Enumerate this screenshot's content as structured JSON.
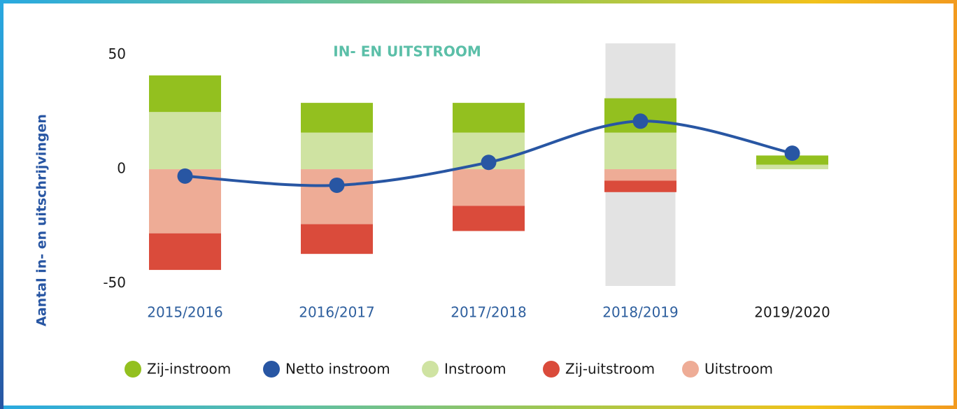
{
  "chart_data": {
    "type": "bar",
    "title": "IN- EN UITSTROOM",
    "y_label": "Aantal in- en uitschrijvingen",
    "categories": [
      "2015/2016",
      "2016/2017",
      "2017/2018",
      "2018/2019",
      "2019/2020"
    ],
    "category_label_colors": [
      "#2e5f9e",
      "#2e5f9e",
      "#2e5f9e",
      "#2e5f9e",
      "#1a1a1a"
    ],
    "highlight_index": 3,
    "highlight_color": "#e3e3e3",
    "series": [
      {
        "name": "Instroom",
        "type": "bar",
        "color": "#cfe3a2",
        "values": [
          25,
          16,
          16,
          16,
          2
        ]
      },
      {
        "name": "Zij-instroom",
        "type": "bar",
        "color": "#93c01f",
        "values": [
          16,
          13,
          13,
          15,
          4
        ]
      },
      {
        "name": "Uitstroom",
        "type": "bar",
        "color": "#eeac96",
        "values": [
          -28,
          -24,
          -16,
          -5,
          0
        ]
      },
      {
        "name": "Zij-uitstroom",
        "type": "bar",
        "color": "#da4b3b",
        "values": [
          -16,
          -13,
          -11,
          -5,
          0
        ]
      },
      {
        "name": "Netto instroom",
        "type": "line",
        "color": "#2856a3",
        "values": [
          -3,
          -7,
          3,
          21,
          7
        ]
      }
    ],
    "legend_order": [
      1,
      4,
      0,
      3,
      2
    ],
    "ylim": [
      -51,
      55
    ],
    "yticks": [
      -50,
      0,
      50
    ]
  }
}
